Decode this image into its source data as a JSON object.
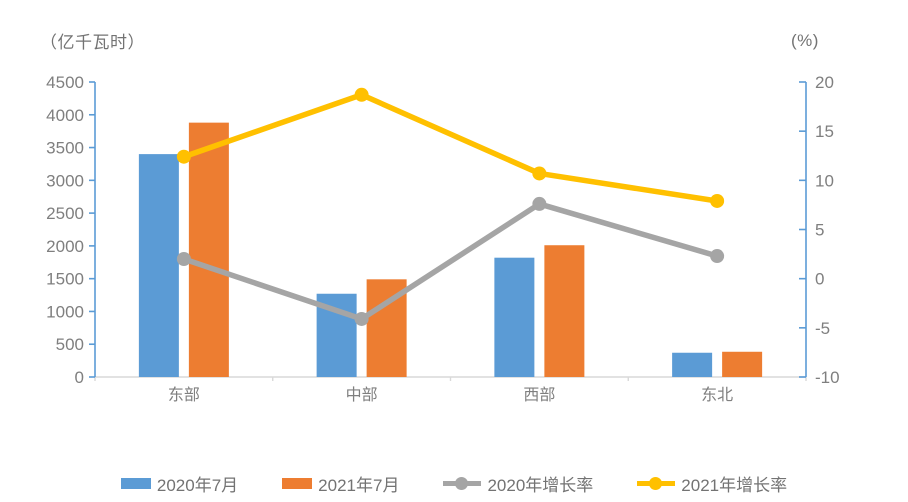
{
  "chart_data": {
    "type": "bar",
    "subtype": "combo-bar-line",
    "categories": [
      "东部",
      "中部",
      "西部",
      "东北"
    ],
    "bar_series": [
      {
        "name": "2020年7月",
        "color": "#5B9BD5",
        "values": [
          3400,
          1270,
          1820,
          370
        ]
      },
      {
        "name": "2021年7月",
        "color": "#ED7D31",
        "values": [
          3880,
          1490,
          2010,
          385
        ]
      }
    ],
    "line_series": [
      {
        "name": "2020年增长率",
        "color": "#A5A5A5",
        "values": [
          2.0,
          -4.1,
          7.6,
          2.3
        ]
      },
      {
        "name": "2021年增长率",
        "color": "#FFC000",
        "values": [
          12.4,
          18.7,
          10.7,
          7.9
        ]
      }
    ],
    "left_axis": {
      "title": "（亿千瓦时）",
      "min": 0,
      "max": 4500,
      "step": 500
    },
    "right_axis": {
      "title": "(%)",
      "min": -10,
      "max": 20,
      "step": 5
    },
    "legend_position": "bottom",
    "grid": false,
    "axis_line_color": "#5B9BD5",
    "bottom_axis_color": "#D9D9D9",
    "tick_label_color": "#7f7f7f"
  }
}
